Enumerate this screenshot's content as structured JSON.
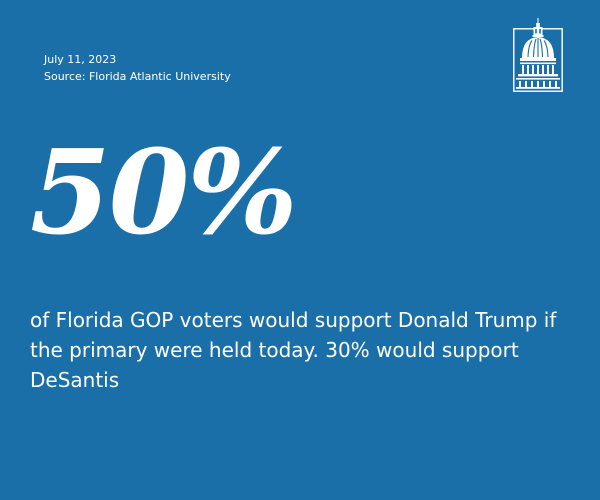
{
  "colors": {
    "background": "#1b6fa8",
    "text": "#ffffff"
  },
  "meta": {
    "date": "July 11, 2023",
    "source": "Source: Florida Atlantic University"
  },
  "logo": {
    "icon": "capitol-dome-icon"
  },
  "stat": {
    "value": "50%"
  },
  "statement": {
    "text": "of Florida GOP voters would support Donald Trump if the primary were held today. 30% would support DeSantis"
  }
}
